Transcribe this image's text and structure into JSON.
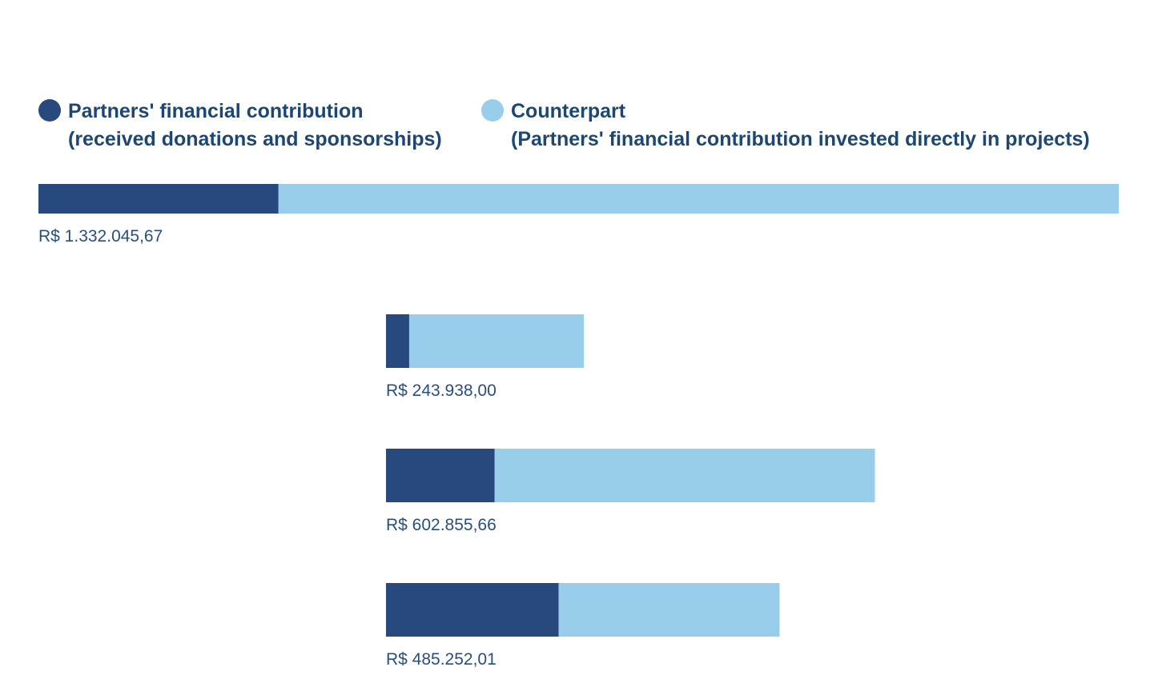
{
  "legend": {
    "partner": {
      "line1": "Partners' financial contribution",
      "line2": "(received donations and sponsorships)"
    },
    "counterpart": {
      "line1": "Counterpart",
      "line2": "(Partners' financial contribution invested directly in projects)"
    }
  },
  "colors": {
    "partner": "#27497e",
    "counterpart": "#99cdec",
    "text": "#1d4773"
  },
  "chart_data": {
    "type": "bar",
    "orientation": "horizontal",
    "stacked": true,
    "xlim": [
      0,
      1332045.67
    ],
    "legend_position": "top",
    "grid": false,
    "categories": [
      "",
      "",
      "",
      ""
    ],
    "series": [
      {
        "name": "Partners' financial contribution (received donations and sponsorships)",
        "values": [
          296000,
          28600,
          134000,
          212900
        ]
      },
      {
        "name": "Counterpart (Partners' financial contribution invested directly in projects)",
        "values": [
          1036045.67,
          215338.0,
          468855.66,
          272352.01
        ]
      }
    ],
    "totals": [
      1332045.67,
      243938.0,
      602855.66,
      485252.01
    ],
    "data_labels": [
      "R$ 1.332.045,67",
      "R$ 243.938,00",
      "R$ 602.855,66",
      "R$ 485.252,01"
    ]
  }
}
